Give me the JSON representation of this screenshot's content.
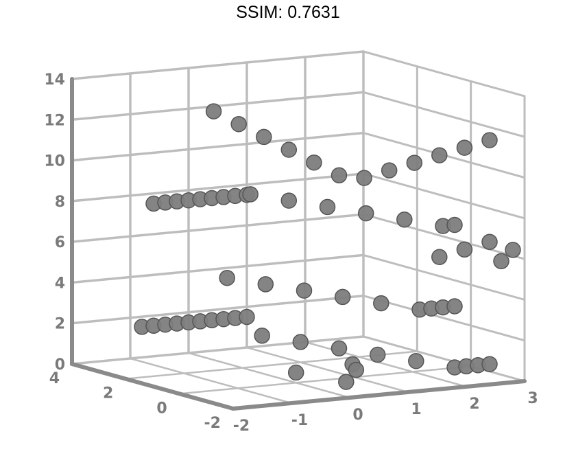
{
  "title": "SSIM: 0.7631",
  "chart_data": {
    "type": "scatter",
    "projection": "3d",
    "title": "SSIM: 0.7631",
    "xlabel": "",
    "ylabel": "",
    "zlabel": "",
    "xlim": [
      -2,
      3
    ],
    "ylim": [
      -2,
      4
    ],
    "zlim": [
      0,
      14
    ],
    "x_ticks": [
      "-2",
      "-1",
      "0",
      "1",
      "2",
      "3"
    ],
    "y_ticks": [
      "-2",
      "0",
      "2",
      "4"
    ],
    "z_ticks": [
      "0",
      "2",
      "4",
      "6",
      "8",
      "10",
      "12",
      "14"
    ],
    "grid": true,
    "colors": {
      "marker": "#7d7d7d",
      "grid": "#bdbdbd",
      "axis": "#8a8a8a",
      "edge": "#555555"
    },
    "series": [
      {
        "values": [
          [
            -0.8,
            4.0,
            1.5
          ],
          [
            -0.6,
            4.0,
            1.5
          ],
          [
            -0.4,
            4.0,
            1.5
          ],
          [
            -0.2,
            4.0,
            1.5
          ],
          [
            0.0,
            4.0,
            1.5
          ],
          [
            0.2,
            4.0,
            1.5
          ],
          [
            0.4,
            4.0,
            1.5
          ],
          [
            0.6,
            4.0,
            1.5
          ],
          [
            0.8,
            4.0,
            1.5
          ],
          [
            1.0,
            4.0,
            1.5
          ],
          [
            0.8,
            3.0,
            1.0
          ],
          [
            1.0,
            2.0,
            1.0
          ],
          [
            1.2,
            1.0,
            1.0
          ],
          [
            1.4,
            0.0,
            1.0
          ],
          [
            1.6,
            -1.0,
            1.0
          ],
          [
            1.8,
            -2.0,
            1.0
          ],
          [
            2.0,
            -2.0,
            1.0
          ],
          [
            2.2,
            -2.0,
            1.0
          ],
          [
            2.4,
            -2.0,
            1.0
          ],
          [
            -0.6,
            4.0,
            7.5
          ],
          [
            -0.4,
            4.0,
            7.5
          ],
          [
            -0.2,
            4.0,
            7.5
          ],
          [
            0.0,
            4.0,
            7.5
          ],
          [
            0.2,
            4.0,
            7.5
          ],
          [
            0.4,
            4.0,
            7.5
          ],
          [
            0.6,
            4.0,
            7.5
          ],
          [
            0.8,
            4.0,
            7.5
          ],
          [
            1.0,
            4.0,
            7.5
          ],
          [
            0.6,
            3.0,
            8.0
          ],
          [
            0.8,
            2.0,
            8.0
          ],
          [
            1.0,
            1.0,
            8.0
          ],
          [
            1.2,
            0.0,
            8.0
          ],
          [
            1.4,
            -1.0,
            8.0
          ],
          [
            1.6,
            -2.0,
            8.0
          ],
          [
            1.8,
            -2.0,
            8.0
          ],
          [
            0.2,
            3.0,
            4.0
          ],
          [
            0.4,
            2.0,
            4.0
          ],
          [
            0.6,
            1.0,
            4.0
          ],
          [
            0.8,
            0.0,
            4.0
          ],
          [
            1.0,
            -1.0,
            4.0
          ],
          [
            1.2,
            -2.0,
            4.0
          ],
          [
            1.4,
            -2.0,
            4.0
          ],
          [
            1.6,
            -2.0,
            4.0
          ],
          [
            1.8,
            -2.0,
            4.0
          ],
          [
            0.2,
            3.5,
            12.0
          ],
          [
            0.4,
            3.0,
            11.5
          ],
          [
            0.6,
            2.5,
            11.0
          ],
          [
            0.8,
            2.0,
            10.5
          ],
          [
            1.0,
            1.5,
            10.0
          ],
          [
            1.2,
            1.0,
            9.5
          ],
          [
            1.4,
            0.5,
            9.5
          ],
          [
            1.6,
            0.0,
            10.0
          ],
          [
            1.8,
            -0.5,
            10.5
          ],
          [
            2.0,
            -1.0,
            11.0
          ],
          [
            2.2,
            -1.5,
            11.5
          ],
          [
            2.4,
            -2.0,
            12.0
          ],
          [
            2.0,
            -1.0,
            6.0
          ],
          [
            2.2,
            -1.5,
            6.5
          ],
          [
            2.4,
            -2.0,
            7.0
          ],
          [
            2.6,
            -2.0,
            6.0
          ],
          [
            2.8,
            -2.0,
            6.5
          ],
          [
            0.0,
            0.0,
            0.5
          ],
          [
            0.4,
            -1.0,
            0.3
          ],
          [
            0.8,
            -0.5,
            0.6
          ],
          [
            1.2,
            0.5,
            0.4
          ]
        ]
      }
    ]
  }
}
